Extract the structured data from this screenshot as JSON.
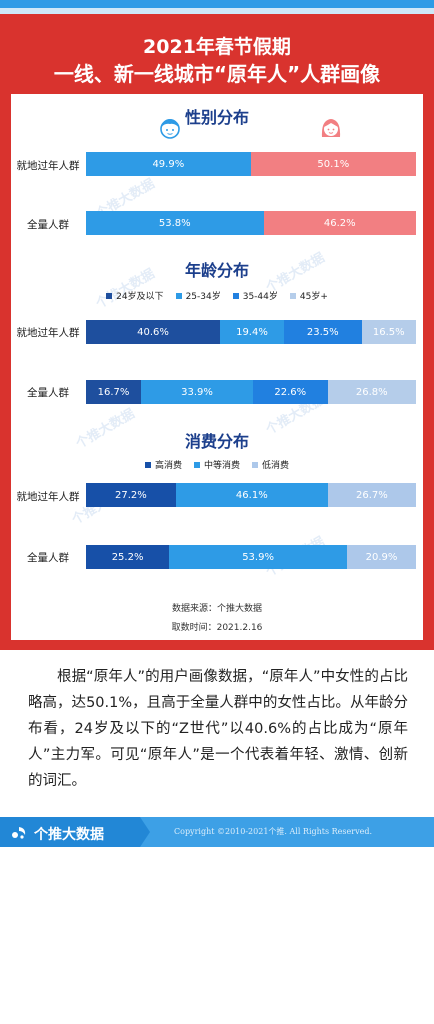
{
  "header": {
    "line1": "2021年春节假期",
    "line2": "一线、新一线城市“原年人”人群画像"
  },
  "colors": {
    "primary_red": "#d9332e",
    "male_blue": "#2e9be6",
    "female_pink": "#f27f82",
    "high": "#1750a8",
    "mid": "#2e9be6",
    "low": "#adc8ea",
    "age_24": "#1e4f9e",
    "age_25_34": "#2e9be6",
    "age_35_44": "#2180e0",
    "age_45": "#b5cdea"
  },
  "gender": {
    "title": "性别分布",
    "male_icon": "male-face-icon",
    "female_icon": "female-face-icon"
  },
  "age": {
    "title": "年龄分布",
    "legend": [
      "24岁及以下",
      "25-34岁",
      "35-44岁",
      "45岁+"
    ]
  },
  "consumption": {
    "title": "消费分布",
    "legend": [
      "高消费",
      "中等消费",
      "低消费"
    ]
  },
  "row_labels": {
    "local": "就地过年人群",
    "all": "全量人群"
  },
  "chart_data": [
    {
      "type": "bar",
      "stacked": "percent",
      "title": "性别分布",
      "categories": [
        "就地过年人群",
        "全量人群"
      ],
      "series": [
        {
          "name": "男",
          "values": [
            49.9,
            53.8
          ]
        },
        {
          "name": "女",
          "values": [
            50.1,
            46.2
          ]
        }
      ],
      "data_labels": {
        "local": [
          "49.9%",
          "50.1%"
        ],
        "all": [
          "53.8%",
          "46.2%"
        ]
      }
    },
    {
      "type": "bar",
      "stacked": "percent",
      "title": "年龄分布",
      "categories": [
        "就地过年人群",
        "全量人群"
      ],
      "series": [
        {
          "name": "24岁及以下",
          "values": [
            40.6,
            16.7
          ]
        },
        {
          "name": "25-34岁",
          "values": [
            19.4,
            33.9
          ]
        },
        {
          "name": "35-44岁",
          "values": [
            23.5,
            22.6
          ]
        },
        {
          "name": "45岁+",
          "values": [
            16.5,
            26.8
          ]
        }
      ],
      "data_labels": {
        "local": [
          "40.6%",
          "19.4%",
          "23.5%",
          "16.5%"
        ],
        "all": [
          "16.7%",
          "33.9%",
          "22.6%",
          "26.8%"
        ]
      },
      "legend_position": "top"
    },
    {
      "type": "bar",
      "stacked": "percent",
      "title": "消费分布",
      "categories": [
        "就地过年人群",
        "全量人群"
      ],
      "series": [
        {
          "name": "高消费",
          "values": [
            27.2,
            25.2
          ]
        },
        {
          "name": "中等消费",
          "values": [
            46.1,
            53.9
          ]
        },
        {
          "name": "低消费",
          "values": [
            26.7,
            20.9
          ]
        }
      ],
      "data_labels": {
        "local": [
          "27.2%",
          "46.1%",
          "26.7%"
        ],
        "all": [
          "25.2%",
          "53.9%",
          "20.9%"
        ]
      },
      "legend_position": "top"
    }
  ],
  "source": {
    "line1": "数据来源：个推大数据",
    "line2": "取数时间：2021.2.16"
  },
  "watermark": "个推大数据",
  "paragraph": "根据“原年人”的用户画像数据，“原年人”中女性的占比略高，达50.1%，且高于全量人群中的女性占比。从年龄分布看，24岁及以下的“Z世代”以40.6%的占比成为“原年人”主力军。可见“原年人”是一个代表着年轻、激情、创新的词汇。",
  "footer": {
    "brand": "个推大数据",
    "logo_icon": "getui-logo-icon",
    "copyright": "Copyright ©2010-2021个推. All Rights Reserved."
  }
}
